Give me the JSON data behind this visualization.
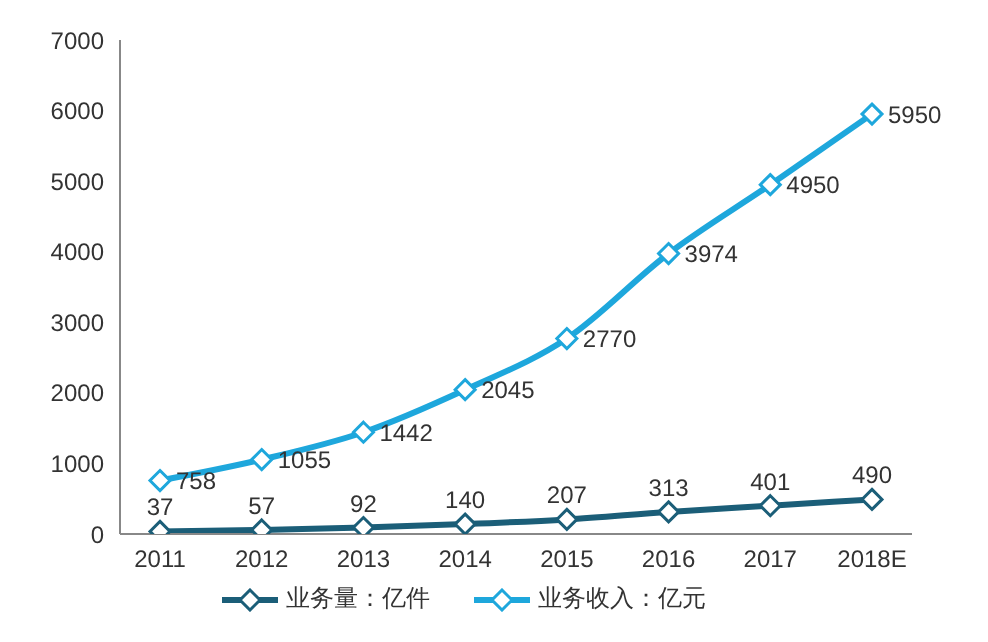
{
  "chart_data": {
    "type": "line",
    "categories": [
      "2011",
      "2012",
      "2013",
      "2014",
      "2015",
      "2016",
      "2017",
      "2018E"
    ],
    "series": [
      {
        "name": "业务量：亿件",
        "color": "#1b5e78",
        "values": [
          37,
          57,
          92,
          140,
          207,
          313,
          401,
          490
        ]
      },
      {
        "name": "业务收入：亿元",
        "color": "#1ea7dc",
        "values": [
          758,
          1055,
          1442,
          2045,
          2770,
          3974,
          4950,
          5950
        ]
      }
    ],
    "ylim": [
      0,
      7000
    ],
    "yticks": [
      0,
      1000,
      2000,
      3000,
      4000,
      5000,
      6000,
      7000
    ],
    "grid": false,
    "legend": "bottom",
    "marker": "diamond",
    "line_style": "solid",
    "data_labels": true
  }
}
